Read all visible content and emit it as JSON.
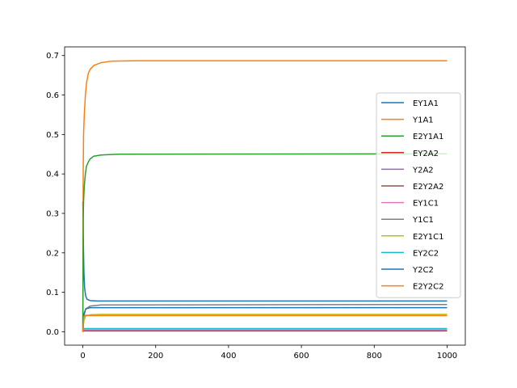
{
  "chart_data": {
    "type": "line",
    "title": "",
    "xlabel": "",
    "ylabel": "",
    "xlim": [
      -50,
      1050
    ],
    "ylim": [
      -0.034,
      0.722
    ],
    "xticks": [
      0,
      200,
      400,
      600,
      800,
      1000
    ],
    "xtick_labels": [
      "0",
      "200",
      "400",
      "600",
      "800",
      "1000"
    ],
    "yticks": [
      0.0,
      0.1,
      0.2,
      0.3,
      0.4,
      0.5,
      0.6,
      0.7
    ],
    "ytick_labels": [
      "0.0",
      "0.1",
      "0.2",
      "0.3",
      "0.4",
      "0.5",
      "0.6",
      "0.7"
    ],
    "grid": false,
    "legend_position": "center-right",
    "series": [
      {
        "name": "EY1A1",
        "color": "#1f77b4",
        "x": [
          0,
          1,
          2,
          3,
          5,
          8,
          12,
          20,
          40,
          100,
          1000
        ],
        "y": [
          0.33,
          0.26,
          0.2,
          0.15,
          0.11,
          0.09,
          0.082,
          0.079,
          0.078,
          0.078,
          0.078
        ]
      },
      {
        "name": "Y1A1",
        "color": "#ff7f0e",
        "x": [
          0,
          1,
          2,
          4,
          7,
          10,
          15,
          20,
          30,
          50,
          80,
          150,
          1000
        ],
        "y": [
          0.0,
          0.4,
          0.5,
          0.55,
          0.6,
          0.63,
          0.655,
          0.665,
          0.675,
          0.682,
          0.686,
          0.687,
          0.687
        ]
      },
      {
        "name": "E2Y1A1",
        "color": "#2ca02c",
        "x": [
          0,
          1,
          2,
          4,
          7,
          10,
          15,
          20,
          30,
          50,
          100,
          1000
        ],
        "y": [
          0.0,
          0.28,
          0.33,
          0.37,
          0.4,
          0.42,
          0.43,
          0.438,
          0.445,
          0.448,
          0.45,
          0.451
        ]
      },
      {
        "name": "EY2A2",
        "color": "#d62728",
        "x": [
          0,
          2,
          10,
          1000
        ],
        "y": [
          0.0,
          0.002,
          0.002,
          0.002
        ]
      },
      {
        "name": "Y2A2",
        "color": "#9467bd",
        "x": [
          0,
          2,
          10,
          1000
        ],
        "y": [
          0.0,
          0.004,
          0.004,
          0.004
        ]
      },
      {
        "name": "E2Y2A2",
        "color": "#8c564b",
        "x": [
          0,
          2,
          10,
          1000
        ],
        "y": [
          0.0,
          0.003,
          0.003,
          0.003
        ]
      },
      {
        "name": "EY1C1",
        "color": "#e377c2",
        "x": [
          0,
          2,
          10,
          1000
        ],
        "y": [
          0.0,
          0.005,
          0.005,
          0.005
        ]
      },
      {
        "name": "Y1C1",
        "color": "#7f7f7f",
        "x": [
          0,
          3,
          8,
          20,
          50,
          1000
        ],
        "y": [
          0.0,
          0.04,
          0.058,
          0.065,
          0.068,
          0.069
        ]
      },
      {
        "name": "E2Y1C1",
        "color": "#bcbd22",
        "x": [
          0,
          3,
          8,
          20,
          50,
          1000
        ],
        "y": [
          0.0,
          0.03,
          0.04,
          0.043,
          0.044,
          0.044
        ]
      },
      {
        "name": "EY2C2",
        "color": "#17becf",
        "x": [
          0,
          2,
          10,
          1000
        ],
        "y": [
          0.0,
          0.008,
          0.008,
          0.008
        ]
      },
      {
        "name": "Y2C2",
        "color": "#1f77b4",
        "x": [
          0,
          3,
          8,
          20,
          50,
          1000
        ],
        "y": [
          0.0,
          0.045,
          0.058,
          0.061,
          0.061,
          0.061
        ]
      },
      {
        "name": "E2Y2C2",
        "color": "#ff7f0e",
        "x": [
          0,
          3,
          8,
          20,
          50,
          1000
        ],
        "y": [
          0.0,
          0.038,
          0.042,
          0.041,
          0.041,
          0.041
        ]
      }
    ]
  }
}
